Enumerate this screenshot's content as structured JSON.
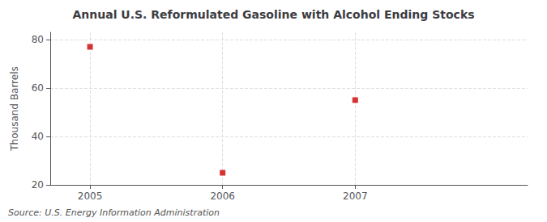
{
  "chart_data": {
    "type": "scatter",
    "title": "Annual U.S. Reformulated Gasoline with Alcohol Ending Stocks",
    "ylabel": "Thousand Barrels",
    "annotation": "Source: U.S. Energy Information Administration",
    "x": [
      2005,
      2006,
      2007
    ],
    "values": [
      77,
      25,
      55
    ],
    "color": "#cc0000",
    "marker": "square",
    "xlim": [
      2004.7,
      2008.3
    ],
    "xticks": [
      2005,
      2006,
      2007
    ],
    "ylim": [
      20,
      83
    ],
    "yticks": [
      20,
      40,
      60,
      80
    ],
    "grid": true
  }
}
